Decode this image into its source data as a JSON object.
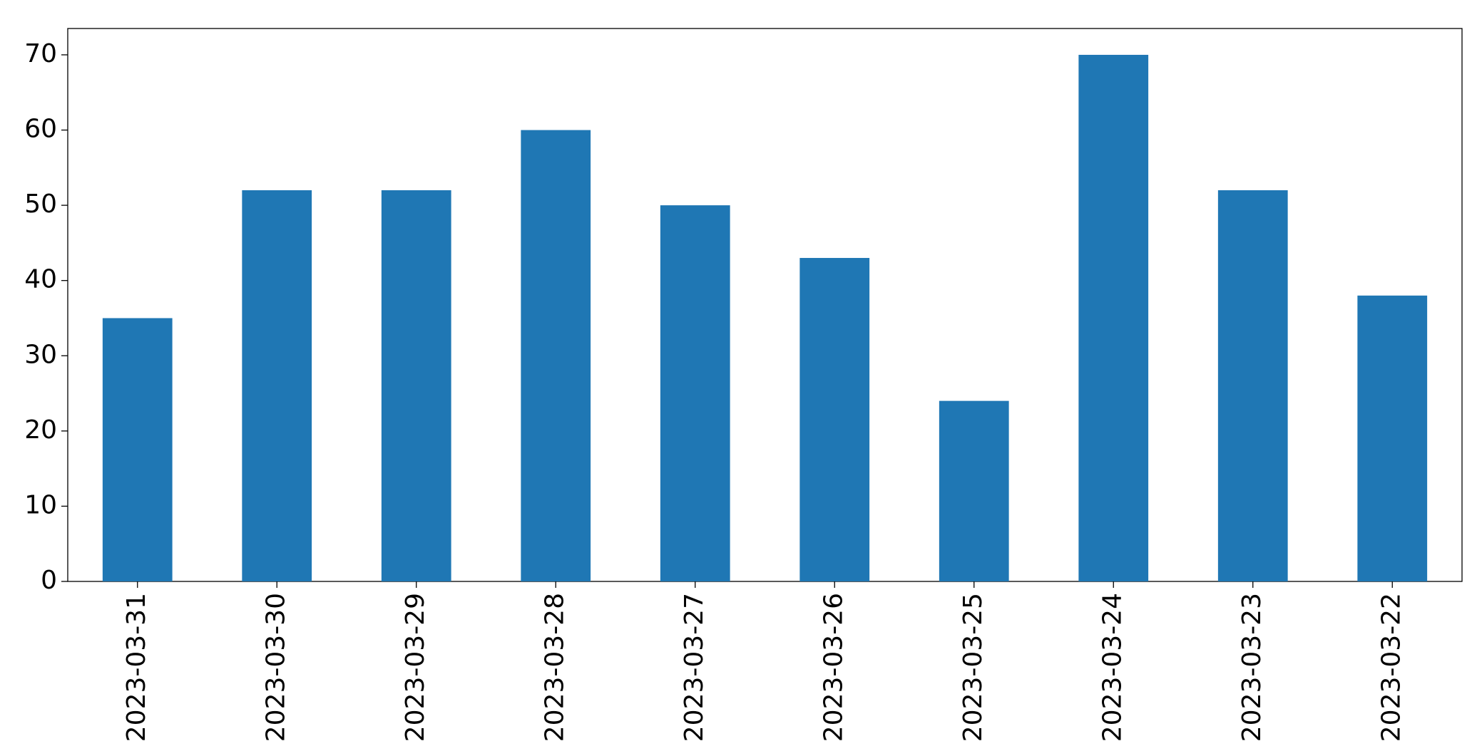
{
  "chart_data": {
    "type": "bar",
    "categories": [
      "2023-03-31",
      "2023-03-30",
      "2023-03-29",
      "2023-03-28",
      "2023-03-27",
      "2023-03-26",
      "2023-03-25",
      "2023-03-24",
      "2023-03-23",
      "2023-03-22"
    ],
    "values": [
      35,
      52,
      52,
      60,
      50,
      43,
      24,
      70,
      52,
      38
    ],
    "color": "#1f77b4",
    "ylim": [
      0,
      73.5
    ],
    "yticks": [
      0,
      10,
      20,
      30,
      40,
      50,
      60,
      70
    ],
    "grid": false
  }
}
